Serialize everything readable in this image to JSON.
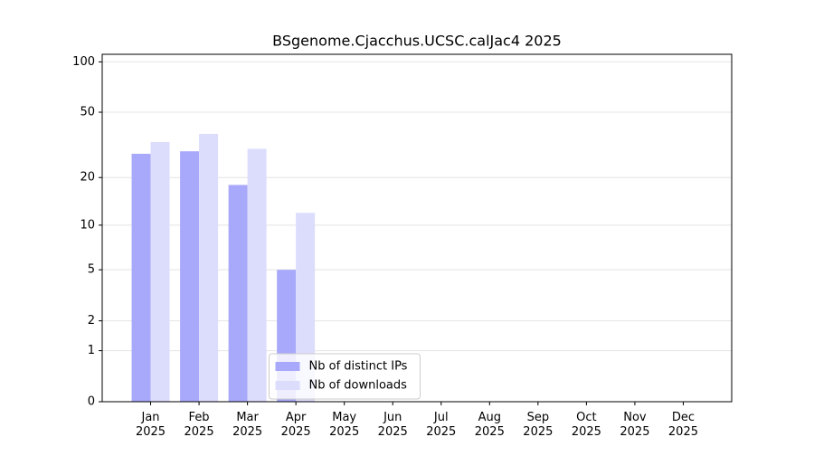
{
  "chart_data": {
    "type": "bar",
    "title": "BSgenome.Cjacchus.UCSC.calJac4 2025",
    "categories": [
      "Jan 2025",
      "Feb 2025",
      "Mar 2025",
      "Apr 2025",
      "May 2025",
      "Jun 2025",
      "Jul 2025",
      "Aug 2025",
      "Sep 2025",
      "Oct 2025",
      "Nov 2025",
      "Dec 2025"
    ],
    "series": [
      {
        "name": "Nb of distinct IPs",
        "color": "#a9a9fb",
        "values": [
          28,
          29,
          18,
          5,
          null,
          null,
          null,
          null,
          null,
          null,
          null,
          null
        ]
      },
      {
        "name": "Nb of downloads",
        "color": "#dcdcfd",
        "values": [
          33,
          37,
          30,
          12,
          null,
          null,
          null,
          null,
          null,
          null,
          null,
          null
        ]
      }
    ],
    "yscale": "log1p",
    "ylim": [
      0,
      111
    ],
    "yticks": [
      0,
      1,
      2,
      5,
      10,
      20,
      50,
      100
    ],
    "grid": true,
    "legend": "lower center"
  }
}
